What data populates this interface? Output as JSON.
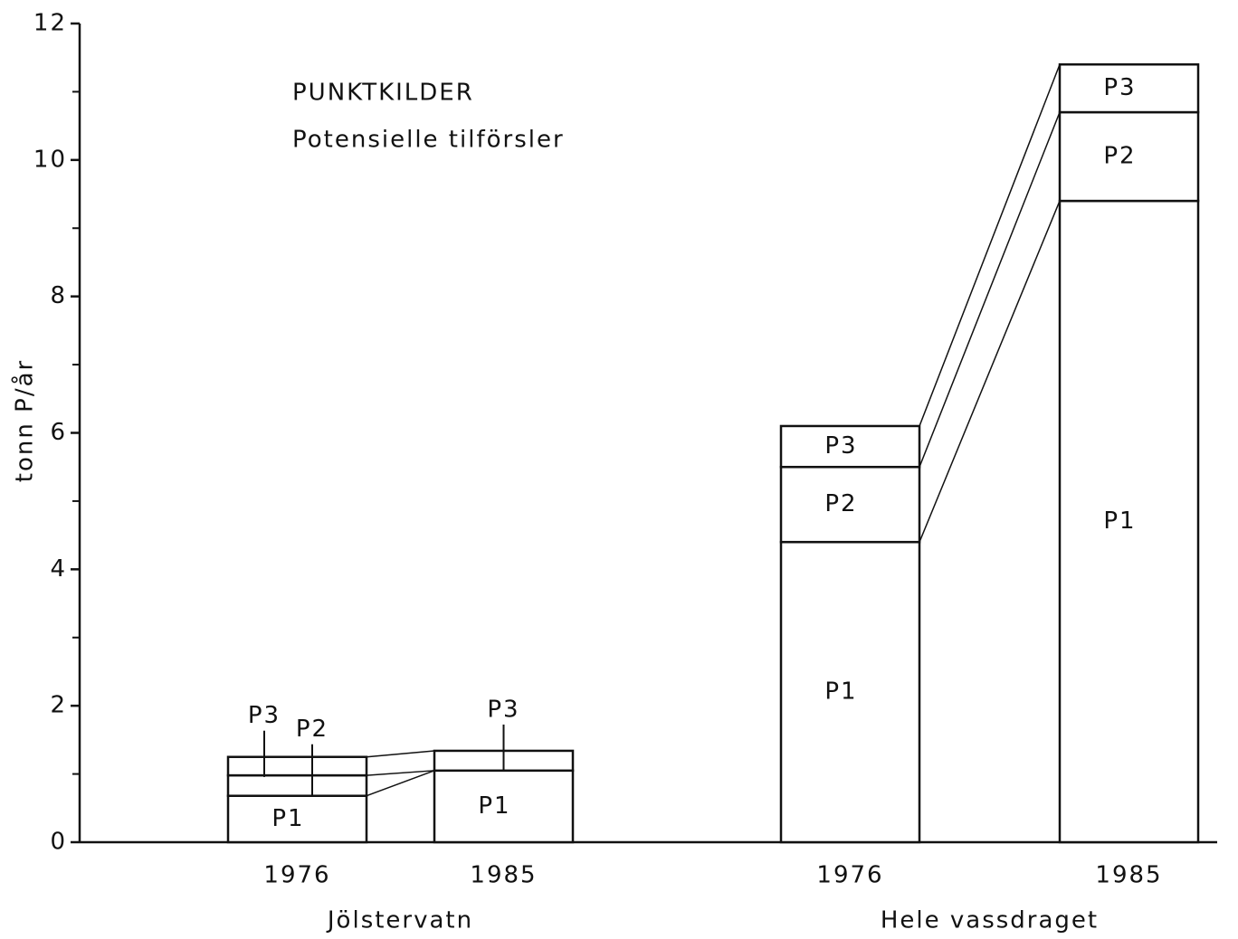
{
  "chart_data": {
    "type": "stacked_bar",
    "annotations": [
      "PUNKTKILDER",
      "Potensielle tilförsler"
    ],
    "ylabel": "tonn P/år",
    "categories": [
      "1976",
      "1985",
      "1976",
      "1985"
    ],
    "groups": [
      "Jölstervatn",
      "Hele vassdraget"
    ],
    "series": [
      {
        "name": "P1",
        "color": "#ffffff",
        "values": [
          0.68,
          1.05,
          4.4,
          9.4
        ]
      },
      {
        "name": "P2",
        "color": "#ffffff",
        "values": [
          0.3,
          0,
          1.1,
          1.3
        ]
      },
      {
        "name": "P3",
        "color": "#ffffff",
        "values": [
          0.27,
          0.29,
          0.6,
          0.7
        ]
      }
    ],
    "ylim": [
      0,
      12
    ],
    "yticks": [
      0,
      2,
      4,
      6,
      8,
      10,
      12
    ],
    "yminor_ticks": [
      1,
      3,
      5,
      7,
      9,
      11
    ],
    "grid": false
  }
}
